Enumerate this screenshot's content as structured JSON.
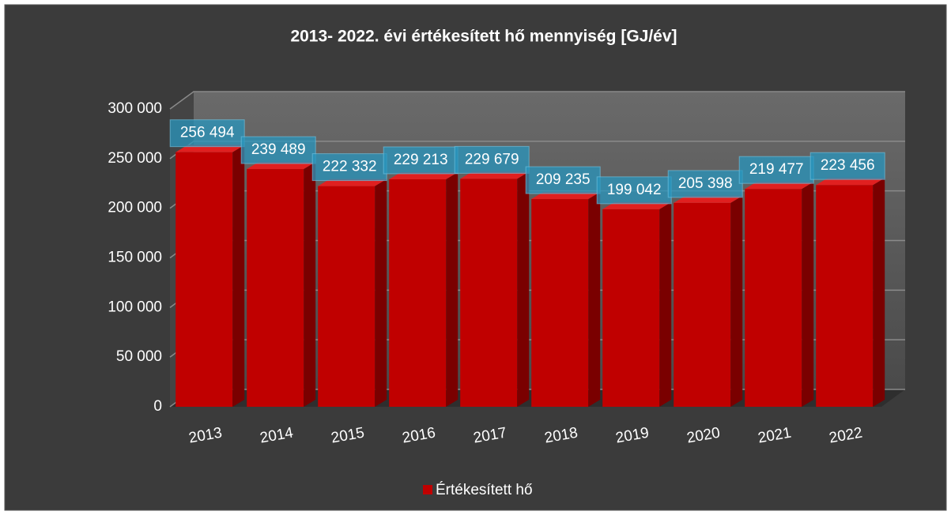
{
  "chart_data": {
    "type": "bar",
    "title": "2013- 2022. évi értékesített hő mennyiség [GJ/év]",
    "categories": [
      "2013",
      "2014",
      "2015",
      "2016",
      "2017",
      "2018",
      "2019",
      "2020",
      "2021",
      "2022"
    ],
    "series": [
      {
        "name": "Értékesített hő",
        "color": "#c00000",
        "values": [
          256494,
          239489,
          222332,
          229213,
          229679,
          209235,
          199042,
          205398,
          219477,
          223456
        ],
        "value_labels": [
          "256 494",
          "239 489",
          "222 332",
          "229 213",
          "229 679",
          "209 235",
          "199 042",
          "205 398",
          "219 477",
          "223 456"
        ]
      }
    ],
    "ylim": [
      0,
      300000
    ],
    "yticks": [
      0,
      {
        "value": 50000,
        "label": "50 000"
      },
      {
        "value": 100000,
        "label": "100 000"
      },
      {
        "value": 150000,
        "label": "150 000"
      },
      {
        "value": 200000,
        "label": "200 000"
      },
      {
        "value": 250000,
        "label": "250 000"
      },
      {
        "value": 300000,
        "label": "300 000"
      }
    ],
    "grid": true,
    "legend": "bottom"
  }
}
